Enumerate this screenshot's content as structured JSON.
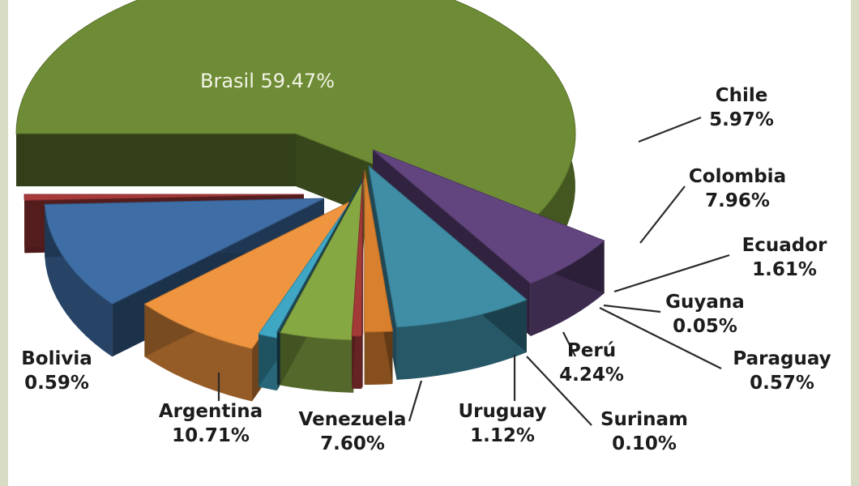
{
  "chart_data": {
    "type": "pie",
    "title": "",
    "slices": [
      {
        "label": "Brasil",
        "value": 59.47,
        "display": "59.47%",
        "color": "#6e8c35"
      },
      {
        "label": "Chile",
        "value": 5.97,
        "display": "5.97%",
        "color": "#62457e"
      },
      {
        "label": "Colombia",
        "value": 7.96,
        "display": "7.96%",
        "color": "#3f8ea6"
      },
      {
        "label": "Ecuador",
        "value": 1.61,
        "display": "1.61%",
        "color": "#d9802e"
      },
      {
        "label": "Guyana",
        "value": 0.05,
        "display": "0.05%",
        "color": "#8b3434"
      },
      {
        "label": "Paraguay",
        "value": 0.57,
        "display": "0.57%",
        "color": "#a33a38"
      },
      {
        "label": "Perú",
        "value": 4.24,
        "display": "4.24%",
        "color": "#86a843"
      },
      {
        "label": "Surinam",
        "value": 0.1,
        "display": "0.10%",
        "color": "#24576a"
      },
      {
        "label": "Uruguay",
        "value": 1.12,
        "display": "1.12%",
        "color": "#3fa6c3"
      },
      {
        "label": "Venezuela",
        "value": 7.6,
        "display": "7.60%",
        "color": "#f0953f"
      },
      {
        "label": "Argentina",
        "value": 10.71,
        "display": "10.71%",
        "color": "#3f6ea6"
      },
      {
        "label": "Bolivia",
        "value": 0.59,
        "display": "0.59%",
        "color": "#a83a3a"
      }
    ],
    "style": "3d-exploded-pie",
    "legend": "none"
  }
}
